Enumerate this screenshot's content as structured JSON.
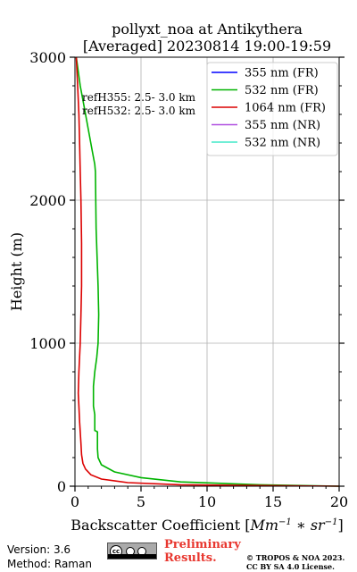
{
  "chart_data": {
    "type": "line",
    "title": "pollyxt_noa at Antikythera",
    "subtitle": "[Averaged] 20230814 19:00-19:59",
    "xlabel_text": "Backscatter Coefficient [",
    "xlabel_unit_base": "Mm",
    "xlabel_unit_exp1": "−1",
    "xlabel_unit_mid": " ∗ ",
    "xlabel_unit_sr": "sr",
    "xlabel_unit_exp2": "−1",
    "xlabel_close": "]",
    "ylabel": "Height (m)",
    "xlim": [
      0,
      20
    ],
    "ylim": [
      0,
      3000
    ],
    "xticks": [
      "0",
      "5",
      "10",
      "15",
      "20"
    ],
    "yticks": [
      "0",
      "1000",
      "2000",
      "3000"
    ],
    "grid": true,
    "legend_position": "top-right",
    "series": [
      {
        "name": "355 nm (FR)",
        "color": "#0000ff",
        "points": []
      },
      {
        "name": "532 nm (FR)",
        "color": "#00b400",
        "points": [
          [
            20,
            0
          ],
          [
            14,
            10
          ],
          [
            8,
            30
          ],
          [
            5,
            60
          ],
          [
            3,
            100
          ],
          [
            2,
            150
          ],
          [
            1.75,
            200
          ],
          [
            1.7,
            260
          ],
          [
            1.7,
            380
          ],
          [
            1.5,
            390
          ],
          [
            1.5,
            500
          ],
          [
            1.4,
            560
          ],
          [
            1.4,
            700
          ],
          [
            1.5,
            800
          ],
          [
            1.65,
            900
          ],
          [
            1.75,
            1000
          ],
          [
            1.8,
            1200
          ],
          [
            1.75,
            1400
          ],
          [
            1.6,
            1800
          ],
          [
            1.55,
            2200
          ],
          [
            1.5,
            2250
          ],
          [
            1.3,
            2350
          ],
          [
            1.0,
            2500
          ],
          [
            0.7,
            2650
          ],
          [
            0.4,
            2800
          ],
          [
            0.1,
            3000
          ]
        ]
      },
      {
        "name": "1064 nm (FR)",
        "color": "#dc0000",
        "points": [
          [
            20,
            0
          ],
          [
            8,
            10
          ],
          [
            4,
            25
          ],
          [
            2,
            50
          ],
          [
            1.2,
            80
          ],
          [
            0.8,
            120
          ],
          [
            0.6,
            160
          ],
          [
            0.5,
            220
          ],
          [
            0.45,
            300
          ],
          [
            0.4,
            380
          ],
          [
            0.35,
            450
          ],
          [
            0.3,
            560
          ],
          [
            0.25,
            650
          ],
          [
            0.3,
            800
          ],
          [
            0.4,
            1000
          ],
          [
            0.45,
            1200
          ],
          [
            0.5,
            1400
          ],
          [
            0.5,
            1700
          ],
          [
            0.45,
            2000
          ],
          [
            0.4,
            2200
          ],
          [
            0.35,
            2400
          ],
          [
            0.3,
            2600
          ],
          [
            0.2,
            2800
          ],
          [
            0.1,
            3000
          ]
        ]
      },
      {
        "name": "355 nm (NR)",
        "color": "#b050e0",
        "points": []
      },
      {
        "name": "532 nm (NR)",
        "color": "#40e8c8",
        "points": []
      }
    ],
    "annotations": [
      "refH355:  2.5- 3.0 km",
      "refH532:  2.5- 3.0 km"
    ]
  },
  "footer": {
    "version": "Version: 3.6",
    "method": "Method: Raman",
    "license_badge": "cc",
    "preliminary_line1": "Preliminary",
    "preliminary_line2": "Results.",
    "copyright_line1": "© TROPOS & NOA 2023.",
    "copyright_line2": "CC BY SA 4.0 License."
  }
}
